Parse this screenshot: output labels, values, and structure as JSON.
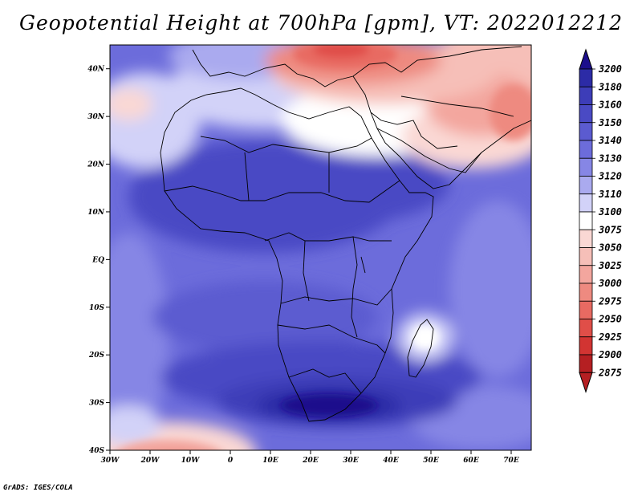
{
  "title": "Geopotential Height at 700hPa [gpm], VT: 2022012212",
  "credit": "GrADS: IGES/COLA",
  "chart_data": {
    "type": "filled_contour_map",
    "variable": "Geopotential Height at 700hPa",
    "units": "gpm",
    "valid_time": "2022012212",
    "lon_range": [
      -30,
      75
    ],
    "lat_range": [
      -40,
      45
    ],
    "x_ticks": [
      {
        "lon": -30,
        "label": "30W"
      },
      {
        "lon": -20,
        "label": "20W"
      },
      {
        "lon": -10,
        "label": "10W"
      },
      {
        "lon": 0,
        "label": "0"
      },
      {
        "lon": 10,
        "label": "10E"
      },
      {
        "lon": 20,
        "label": "20E"
      },
      {
        "lon": 30,
        "label": "30E"
      },
      {
        "lon": 40,
        "label": "40E"
      },
      {
        "lon": 50,
        "label": "50E"
      },
      {
        "lon": 60,
        "label": "60E"
      },
      {
        "lon": 70,
        "label": "70E"
      }
    ],
    "y_ticks": [
      {
        "lat": 40,
        "label": "40N"
      },
      {
        "lat": 30,
        "label": "30N"
      },
      {
        "lat": 20,
        "label": "20N"
      },
      {
        "lat": 10,
        "label": "10N"
      },
      {
        "lat": 0,
        "label": "EQ"
      },
      {
        "lat": -10,
        "label": "10S"
      },
      {
        "lat": -20,
        "label": "20S"
      },
      {
        "lat": -30,
        "label": "30S"
      },
      {
        "lat": -40,
        "label": "40S"
      }
    ],
    "levels": [
      {
        "value": "3200",
        "color": "#1c0e8c"
      },
      {
        "value": "3180",
        "color": "#2c2ba6"
      },
      {
        "value": "3160",
        "color": "#3d3db8"
      },
      {
        "value": "3150",
        "color": "#4a4ac4"
      },
      {
        "value": "3140",
        "color": "#5b5bd0"
      },
      {
        "value": "3130",
        "color": "#6c6cdb"
      },
      {
        "value": "3120",
        "color": "#8686e5"
      },
      {
        "value": "3110",
        "color": "#aaaaef"
      },
      {
        "value": "3100",
        "color": "#d2d2f8"
      },
      {
        "value": "3075",
        "color": "#ffffff"
      },
      {
        "value": "3050",
        "color": "#fad8d4"
      },
      {
        "value": "3025",
        "color": "#f6bfb8"
      },
      {
        "value": "3000",
        "color": "#f3a69e"
      },
      {
        "value": "2975",
        "color": "#ee8a80"
      },
      {
        "value": "2950",
        "color": "#e86a62"
      },
      {
        "value": "2925",
        "color": "#e04e48"
      },
      {
        "value": "2900",
        "color": "#d23432"
      },
      {
        "value": "2875",
        "color": "#b51f22"
      }
    ],
    "features": [
      {
        "name": "high-over-southern-africa",
        "lon": 22,
        "lat": -31,
        "value": "3180+"
      },
      {
        "name": "low-over-eastern-mediterranean",
        "lon": 28,
        "lat": 40,
        "value": "2925"
      },
      {
        "name": "low-south-atlantic",
        "lon": -20,
        "lat": -40,
        "value": "3025"
      },
      {
        "name": "ridge-madagascar",
        "lon": 49,
        "lat": -19,
        "value": "3075"
      }
    ]
  }
}
